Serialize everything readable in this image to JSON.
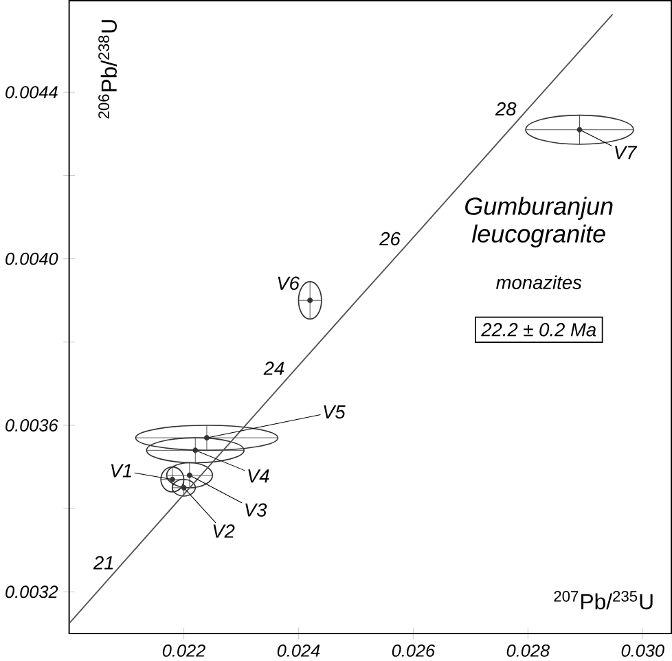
{
  "chart_data": {
    "type": "scatter",
    "title": "Gumburanjun leucogranite",
    "subtitle": "monazites",
    "xlabel": "$^{207}$Pb/$^{235}$U",
    "ylabel": "$^{206}$Pb/$^{238}$U",
    "xlim": [
      0.02,
      0.0305
    ],
    "ylim": [
      0.0031,
      0.00462
    ],
    "xticks": [
      {
        "value": 0.022,
        "label": "0.022"
      },
      {
        "value": 0.024,
        "label": "0.024"
      },
      {
        "value": 0.026,
        "label": "0.026"
      },
      {
        "value": 0.028,
        "label": "0.028"
      },
      {
        "value": 0.03,
        "label": "0.030"
      }
    ],
    "yticks": [
      {
        "value": 0.0032,
        "label": "0.0032"
      },
      {
        "value": 0.0034,
        "label": null
      },
      {
        "value": 0.0036,
        "label": "0.0036"
      },
      {
        "value": 0.0038,
        "label": null
      },
      {
        "value": 0.004,
        "label": "0.0040"
      },
      {
        "value": 0.0042,
        "label": null
      },
      {
        "value": 0.0044,
        "label": "0.0044"
      }
    ],
    "series": [
      {
        "marker": "circle",
        "color": "#333333",
        "x": [
          0.0218,
          0.022,
          0.0221,
          0.0222,
          0.0224,
          0.0242,
          0.0289
        ],
        "values": [
          0.00347,
          0.00345,
          0.00348,
          0.00354,
          0.00357,
          0.0039,
          0.00431
        ],
        "xerrors": [
          0.0002,
          0.0002,
          0.0004,
          0.00085,
          0.00124,
          0.0002,
          0.00094
        ],
        "errors": [
          3e-05,
          2e-05,
          3e-05,
          3e-05,
          3e-05,
          4.5e-05,
          3.5e-05
        ]
      },
      {
        "type": "line",
        "marker": "none",
        "color": "#555555",
        "x": [
          0.02,
          0.020896,
          0.021902,
          0.022909,
          0.023915,
          0.024924,
          0.025934,
          0.026945,
          0.027956,
          0.028969,
          0.029475
        ],
        "values": [
          0.003124,
          0.003263,
          0.003419,
          0.003574,
          0.00373,
          0.003886,
          0.004041,
          0.004197,
          0.004353,
          0.004509,
          0.004587
        ]
      }
    ],
    "annotations": [
      {
        "text": "V1",
        "x": 0.0218,
        "y": 0.00347
      },
      {
        "text": "V2",
        "x": 0.022,
        "y": 0.00345
      },
      {
        "text": "V3",
        "x": 0.0221,
        "y": 0.00348
      },
      {
        "text": "V4",
        "x": 0.0222,
        "y": 0.00354
      },
      {
        "text": "V5",
        "x": 0.0224,
        "y": 0.00357
      },
      {
        "text": "V6",
        "x": 0.0242,
        "y": 0.0039
      },
      {
        "text": "V7",
        "x": 0.0289,
        "y": 0.00431
      },
      {
        "text": "21",
        "x": 0.020896,
        "y": 0.003263
      },
      {
        "text": "24",
        "x": 0.023915,
        "y": 0.00373
      },
      {
        "text": "26",
        "x": 0.025934,
        "y": 0.004041
      },
      {
        "text": "28",
        "x": 0.027956,
        "y": 0.004353
      },
      "22.2 ± 0.2 Ma"
    ]
  }
}
